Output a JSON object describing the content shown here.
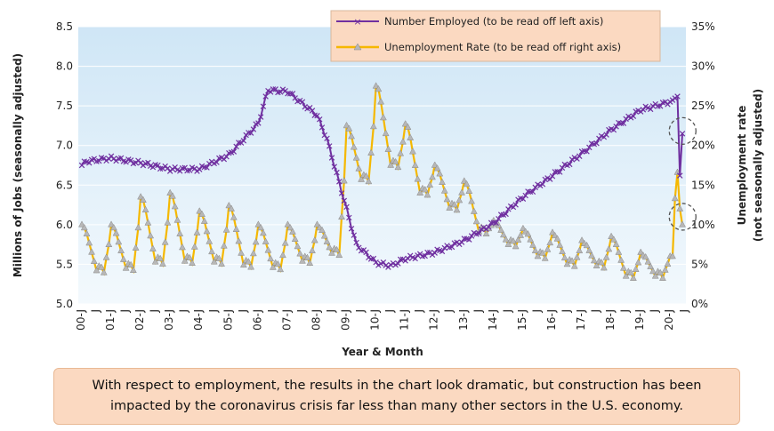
{
  "chart_data": {
    "type": "line",
    "xlabel": "Year & Month",
    "ylabel_left": "Millions of Jobs (seasonally adjusted)",
    "ylabel_right": "Unemployment rate (not seasonally adjusted)",
    "ylim_left": [
      5.0,
      8.5
    ],
    "ylim_right": [
      0,
      35
    ],
    "left_ticks": [
      "5.0",
      "5.5",
      "6.0",
      "6.5",
      "7.0",
      "7.5",
      "8.0",
      "8.5"
    ],
    "right_ticks": [
      "0%",
      "5%",
      "10%",
      "15%",
      "20%",
      "25%",
      "30%",
      "35%"
    ],
    "x_tick_labels": [
      "00-J",
      "J",
      "01-J",
      "J",
      "02-J",
      "J",
      "03-J",
      "J",
      "04-J",
      "J",
      "05-J",
      "J",
      "06-J",
      "J",
      "07-J",
      "J",
      "08-J",
      "J",
      "09-J",
      "J",
      "10-J",
      "J",
      "11-J",
      "J",
      "12-J",
      "J",
      "13-J",
      "J",
      "14-J",
      "J",
      "15-J",
      "J",
      "16-J",
      "J",
      "17-J",
      "J",
      "18-J",
      "J",
      "19-J",
      "J",
      "20-J",
      "J"
    ],
    "grid": true,
    "legend_position": "top-right",
    "series": [
      {
        "name": "Number Employed (to be read off left axis)",
        "axis": "left",
        "color": "#7030a0",
        "marker": "x",
        "anchor_months": [
          0,
          2,
          12,
          24,
          36,
          48,
          60,
          72,
          76,
          84,
          96,
          100,
          108,
          112,
          120,
          126,
          132,
          144,
          156,
          168,
          180,
          192,
          204,
          216,
          228,
          240,
          243,
          244,
          245
        ],
        "values": [
          6.75,
          6.8,
          6.84,
          6.78,
          6.7,
          6.7,
          6.88,
          7.28,
          7.7,
          7.68,
          7.38,
          7.08,
          6.2,
          5.75,
          5.52,
          5.48,
          5.57,
          5.65,
          5.8,
          6.02,
          6.35,
          6.62,
          6.9,
          7.2,
          7.45,
          7.55,
          7.62,
          6.62,
          7.15
        ]
      },
      {
        "name": "Unemployment Rate (to be read off right axis)",
        "axis": "right",
        "color": "#f5b800",
        "marker": "triangle",
        "seasonal_winter_peaks_percent": [
          10.0,
          10.0,
          13.5,
          14.0,
          11.7,
          12.4,
          10.0,
          10.0,
          10.0,
          22.5,
          27.5,
          22.7,
          17.5,
          15.5,
          10.5,
          9.5,
          9.0,
          8.0,
          8.5,
          6.5,
          6.2
        ],
        "seasonal_summer_lows_percent": [
          4.2,
          4.5,
          5.3,
          5.4,
          5.3,
          4.9,
          4.6,
          5.4,
          6.4,
          15.7,
          17.5,
          14.0,
          12.1,
          9.1,
          7.5,
          6.0,
          5.0,
          4.8,
          3.5,
          3.5,
          6.0
        ],
        "late_values_percent": {
          "2020-02": 6.0,
          "2020-04": 16.6,
          "2020-06": 12.0,
          "2020-07": 10.0
        }
      }
    ],
    "annotations": [
      "dashed-circle-on-employment-drop",
      "dashed-circle-on-rate-spike"
    ]
  },
  "note": {
    "line1": "With respect to employment, the results in the chart look dramatic, but construction has been",
    "line2": "impacted by the coronavirus crisis far less than many other sectors in the U.S. economy."
  },
  "colors": {
    "plot_gradient_top": "#cfe6f6",
    "plot_gradient_bottom": "#f3f9fd",
    "legend_bg": "#fbd9c1",
    "note_bg": "#fbd9c1",
    "employment_line": "#7030a0",
    "rate_line": "#f5b800",
    "rate_marker": "#b7b7b7"
  }
}
